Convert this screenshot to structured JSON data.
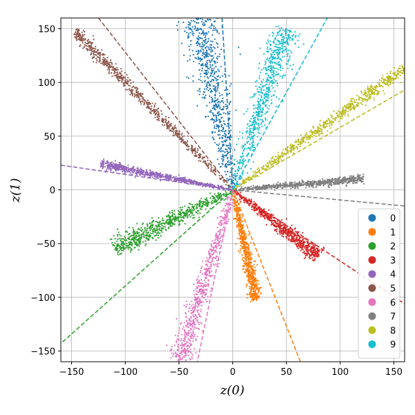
{
  "chart_data": {
    "type": "scatter",
    "title": "",
    "xlabel": "z(0)",
    "ylabel": "z(1)",
    "xlim": [
      -160,
      160
    ],
    "ylim": [
      -160,
      160
    ],
    "xticks": [
      -150,
      -100,
      -50,
      0,
      50,
      100,
      150
    ],
    "yticks": [
      -150,
      -100,
      -50,
      0,
      50,
      100,
      150
    ],
    "xtick_labels": [
      "−150",
      "−100",
      "−50",
      "0",
      "50",
      "100",
      "150"
    ],
    "ytick_labels": [
      "−150",
      "−100",
      "−50",
      "0",
      "50",
      "100",
      "150"
    ],
    "grid": true,
    "legend_position": "lower-right",
    "series": [
      {
        "name": "0",
        "color": "#1f77b4",
        "cluster": {
          "start": [
            0,
            0
          ],
          "end": [
            -32,
            160
          ],
          "spread": 9
        },
        "trend_line": {
          "from": [
            -10,
            160
          ],
          "to": [
            0,
            0
          ]
        }
      },
      {
        "name": "1",
        "color": "#ff7f0e",
        "cluster": {
          "start": [
            0,
            0
          ],
          "end": [
            22,
            -103
          ],
          "spread": 3
        },
        "trend_line": {
          "from": [
            0,
            0
          ],
          "to": [
            63,
            -160
          ]
        }
      },
      {
        "name": "2",
        "color": "#2ca02c",
        "cluster": {
          "start": [
            0,
            0
          ],
          "end": [
            -110,
            -55
          ],
          "spread": 5
        },
        "trend_line": {
          "from": [
            0,
            0
          ],
          "to": [
            -160,
            -143
          ]
        }
      },
      {
        "name": "3",
        "color": "#d62728",
        "cluster": {
          "start": [
            0,
            0
          ],
          "end": [
            80,
            -62
          ],
          "spread": 3.5
        },
        "trend_line": {
          "from": [
            0,
            0
          ],
          "to": [
            160,
            -106
          ]
        }
      },
      {
        "name": "4",
        "color": "#9467bd",
        "cluster": {
          "start": [
            0,
            0
          ],
          "end": [
            -123,
            24
          ],
          "spread": 2
        },
        "trend_line": {
          "from": [
            -160,
            23
          ],
          "to": [
            0,
            0
          ]
        }
      },
      {
        "name": "5",
        "color": "#8c564b",
        "cluster": {
          "start": [
            0,
            0
          ],
          "end": [
            -147,
            148
          ],
          "spread": 3
        },
        "trend_line": {
          "from": [
            -125,
            160
          ],
          "to": [
            0,
            0
          ]
        }
      },
      {
        "name": "6",
        "color": "#e377c2",
        "cluster": {
          "start": [
            0,
            0
          ],
          "end": [
            -50,
            -160
          ],
          "spread": 5
        },
        "trend_line": {
          "from": [
            0,
            0
          ],
          "to": [
            -33,
            -160
          ]
        }
      },
      {
        "name": "7",
        "color": "#7f7f7f",
        "cluster": {
          "start": [
            0,
            0
          ],
          "end": [
            122,
            10
          ],
          "spread": 2
        },
        "trend_line": {
          "from": [
            0,
            0
          ],
          "to": [
            160,
            -15
          ]
        }
      },
      {
        "name": "8",
        "color": "#bcbd22",
        "cluster": {
          "start": [
            0,
            0
          ],
          "end": [
            160,
            113
          ],
          "spread": 3
        },
        "trend_line": {
          "from": [
            0,
            0
          ],
          "to": [
            160,
            93
          ]
        }
      },
      {
        "name": "9",
        "color": "#17becf",
        "cluster": {
          "start": [
            0,
            0
          ],
          "end": [
            50,
            150
          ],
          "spread": 7
        },
        "trend_line": {
          "from": [
            0,
            0
          ],
          "to": [
            88,
            160
          ]
        }
      }
    ]
  }
}
